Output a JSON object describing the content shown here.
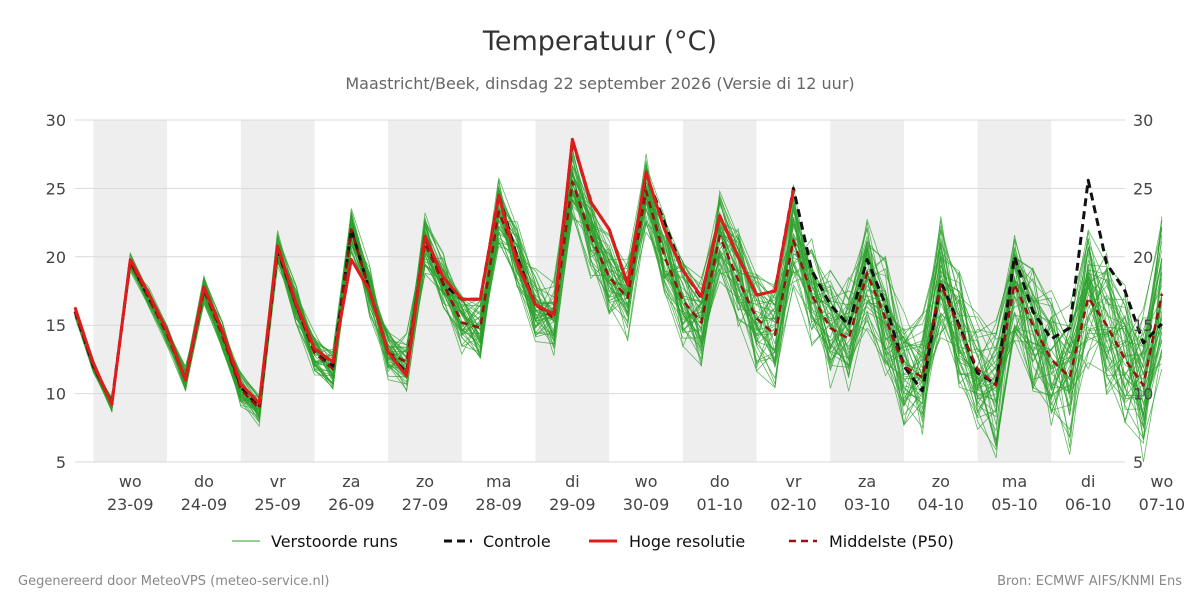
{
  "colors": {
    "ensemble": "#2ca02c",
    "control": "#111111",
    "hires": "#e01b1b",
    "median": "#9b1010",
    "weekend_band": "#eeeeee",
    "grid": "#d9d9d9"
  },
  "footer": {
    "left": "Gegenereerd door MeteoVPS (meteo-service.nl)",
    "right": "Bron: ECMWF AIFS/KNMI Ens"
  },
  "chart_data": {
    "type": "line",
    "title": "Temperatuur (°C)",
    "subtitle": "Maastricht/Beek, dinsdag 22 september 2026 (Versie di 12 uur)",
    "ylim": [
      5,
      30
    ],
    "yticks": [
      5,
      10,
      15,
      20,
      25,
      30
    ],
    "xlim": [
      -0.25,
      14
    ],
    "grid": true,
    "legend_placement": "bottom-center",
    "x_ticks": [
      {
        "day": "wo",
        "date": "23-09"
      },
      {
        "day": "do",
        "date": "24-09"
      },
      {
        "day": "vr",
        "date": "25-09"
      },
      {
        "day": "za",
        "date": "26-09"
      },
      {
        "day": "zo",
        "date": "27-09"
      },
      {
        "day": "ma",
        "date": "28-09"
      },
      {
        "day": "di",
        "date": "29-09"
      },
      {
        "day": "wo",
        "date": "30-09"
      },
      {
        "day": "do",
        "date": "01-10"
      },
      {
        "day": "vr",
        "date": "02-10"
      },
      {
        "day": "za",
        "date": "03-10"
      },
      {
        "day": "zo",
        "date": "04-10"
      },
      {
        "day": "ma",
        "date": "05-10"
      },
      {
        "day": "di",
        "date": "06-10"
      },
      {
        "day": "wo",
        "date": "07-10"
      }
    ],
    "x_step_days": 0.25,
    "x_start_offset_days": -0.25,
    "series": [
      {
        "name": "Controle",
        "style": "dashed",
        "values": [
          16,
          12,
          9.3,
          19.7,
          17,
          14.5,
          11,
          17.6,
          14.5,
          10.5,
          9,
          20.5,
          16.5,
          13,
          12,
          22,
          17.5,
          13,
          11.5,
          21.5,
          18,
          16.9,
          16.9,
          24.5,
          20,
          16.5,
          15.8,
          28.5,
          24,
          22,
          18,
          26,
          22.5,
          19,
          17,
          23,
          20,
          17.2,
          17.5,
          25,
          19,
          16.5,
          15,
          19.8,
          16.5,
          12,
          10.2,
          18.2,
          15,
          11.5,
          10.7,
          20,
          16,
          14,
          14.8,
          25.6,
          19.5,
          17.5,
          13.7,
          15.1
        ]
      },
      {
        "name": "Hoge resolutie",
        "style": "solid",
        "values": [
          16.3,
          12.2,
          9.2,
          19.8,
          17.3,
          14.6,
          11,
          17.8,
          14.6,
          10.7,
          9.3,
          20.8,
          16.6,
          13.3,
          12.3,
          19.8,
          17.5,
          13,
          11.3,
          21.5,
          18.5,
          16.9,
          16.9,
          24.5,
          19.5,
          16.5,
          15.8,
          28.6,
          24,
          22,
          18,
          26.2,
          22,
          19,
          17.1,
          23,
          20,
          17.2,
          17.5,
          24.9
        ]
      },
      {
        "name": "Middelste (P50)",
        "style": "dashed",
        "values": [
          16,
          12,
          9.2,
          19.6,
          17,
          14.3,
          11,
          17.6,
          14.2,
          10.3,
          8.9,
          20.6,
          16.4,
          13,
          11.8,
          22,
          17.5,
          13,
          12.3,
          21,
          18,
          15.2,
          14.8,
          23.3,
          20,
          16.5,
          15.5,
          25.5,
          21.5,
          18.5,
          17,
          24.8,
          20,
          16.8,
          15.2,
          21.5,
          18.3,
          15.5,
          14.3,
          21.2,
          17.2,
          14.8,
          14,
          18.8,
          15.5,
          12,
          11.2,
          18,
          14.8,
          11.8,
          10.6,
          18,
          15,
          12.5,
          11.2,
          17,
          15,
          12.5,
          10.6,
          17.3
        ]
      },
      {
        "name": "Verstoorde runs",
        "style": "thin",
        "values": []
      }
    ]
  }
}
